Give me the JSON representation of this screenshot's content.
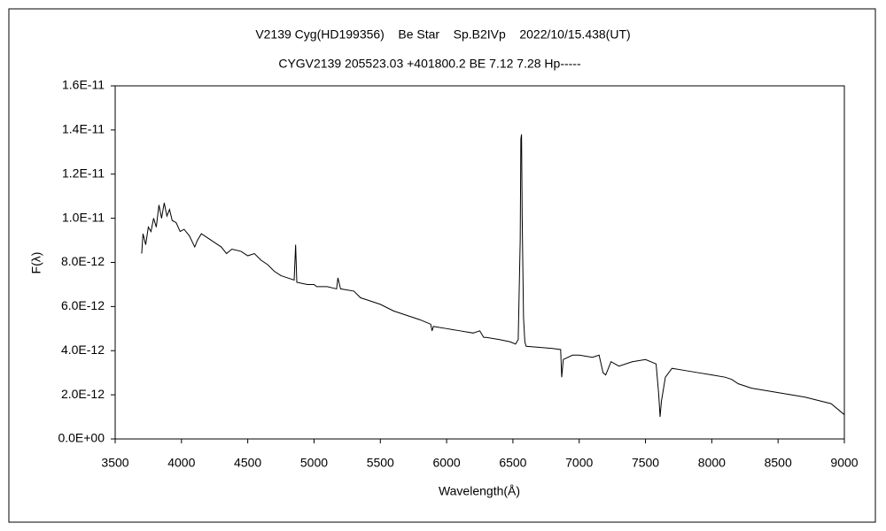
{
  "chart_data": {
    "type": "line",
    "title": "V2139 Cyg(HD199356)    Be Star    Sp.B2IVp    2022/10/15.438(UT)",
    "subtitle": "CYGV2139 205523.03 +401800.2 BE 7.12 7.28 Hp-----",
    "x_label": "Wavelength(Å)",
    "y_label": "F(λ)",
    "color": "#000000",
    "x": [
      3700,
      3710,
      3730,
      3750,
      3770,
      3790,
      3810,
      3830,
      3850,
      3870,
      3890,
      3910,
      3930,
      3960,
      3990,
      4020,
      4060,
      4100,
      4120,
      4150,
      4200,
      4250,
      4300,
      4340,
      4380,
      4450,
      4500,
      4550,
      4600,
      4650,
      4700,
      4750,
      4800,
      4850,
      4861,
      4870,
      4950,
      5000,
      5020,
      5100,
      5170,
      5180,
      5200,
      5300,
      5350,
      5400,
      5500,
      5600,
      5700,
      5800,
      5880,
      5890,
      5900,
      6000,
      6100,
      6200,
      6250,
      6280,
      6300,
      6400,
      6480,
      6520,
      6540,
      6555,
      6560,
      6565,
      6570,
      6580,
      6590,
      6600,
      6700,
      6800,
      6860,
      6868,
      6880,
      6950,
      7000,
      7100,
      7150,
      7180,
      7200,
      7240,
      7300,
      7400,
      7500,
      7580,
      7600,
      7610,
      7620,
      7650,
      7700,
      7800,
      7900,
      8000,
      8100,
      8150,
      8200,
      8300,
      8400,
      8500,
      8600,
      8700,
      8800,
      8900,
      9000
    ],
    "values": [
      8.4e-12,
      9.3e-12,
      8.8e-12,
      9.6e-12,
      9.4e-12,
      1e-11,
      9.6e-12,
      1.06e-11,
      1e-11,
      1.07e-11,
      1.01e-11,
      1.04e-11,
      9.9e-12,
      9.8e-12,
      9.4e-12,
      9.5e-12,
      9.2e-12,
      8.7e-12,
      9e-12,
      9.3e-12,
      9.1e-12,
      8.9e-12,
      8.7e-12,
      8.4e-12,
      8.6e-12,
      8.5e-12,
      8.3e-12,
      8.4e-12,
      8.1e-12,
      7.9e-12,
      7.6e-12,
      7.4e-12,
      7.3e-12,
      7.2e-12,
      8.8e-12,
      7.1e-12,
      7e-12,
      7e-12,
      6.9e-12,
      6.9e-12,
      6.8e-12,
      7.3e-12,
      6.8e-12,
      6.7e-12,
      6.4e-12,
      6.3e-12,
      6.1e-12,
      5.8e-12,
      5.6e-12,
      5.4e-12,
      5.2e-12,
      4.9e-12,
      5.1e-12,
      5e-12,
      4.9e-12,
      4.8e-12,
      4.9e-12,
      4.6e-12,
      4.6e-12,
      4.5e-12,
      4.4e-12,
      4.3e-12,
      4.5e-12,
      9e-12,
      1.36e-11,
      1.38e-11,
      1e-11,
      5.5e-12,
      4.4e-12,
      4.2e-12,
      4.15e-12,
      4.1e-12,
      4.05e-12,
      2.8e-12,
      3.6e-12,
      3.8e-12,
      3.8e-12,
      3.7e-12,
      3.8e-12,
      3e-12,
      2.9e-12,
      3.5e-12,
      3.3e-12,
      3.5e-12,
      3.6e-12,
      3.4e-12,
      2e-12,
      1e-12,
      1.7e-12,
      2.8e-12,
      3.2e-12,
      3.1e-12,
      3e-12,
      2.9e-12,
      2.8e-12,
      2.7e-12,
      2.5e-12,
      2.3e-12,
      2.2e-12,
      2.1e-12,
      2e-12,
      1.9e-12,
      1.75e-12,
      1.6e-12,
      1.1e-12
    ],
    "xlim": [
      3500,
      9000
    ],
    "xticks": [
      3500,
      4000,
      4500,
      5000,
      5500,
      6000,
      6500,
      7000,
      7500,
      8000,
      8500,
      9000
    ],
    "ylim": [
      0,
      1.6e-11
    ],
    "yticks": [
      {
        "value": 0,
        "label": "0.0E+00"
      },
      {
        "value": 2e-12,
        "label": "2.0E-12"
      },
      {
        "value": 4e-12,
        "label": "4.0E-12"
      },
      {
        "value": 6e-12,
        "label": "6.0E-12"
      },
      {
        "value": 8e-12,
        "label": "8.0E-12"
      },
      {
        "value": 1e-11,
        "label": "1.0E-11"
      },
      {
        "value": 1.2e-11,
        "label": "1.2E-11"
      },
      {
        "value": 1.4e-11,
        "label": "1.4E-11"
      },
      {
        "value": 1.6e-11,
        "label": "1.6E-11"
      }
    ]
  }
}
